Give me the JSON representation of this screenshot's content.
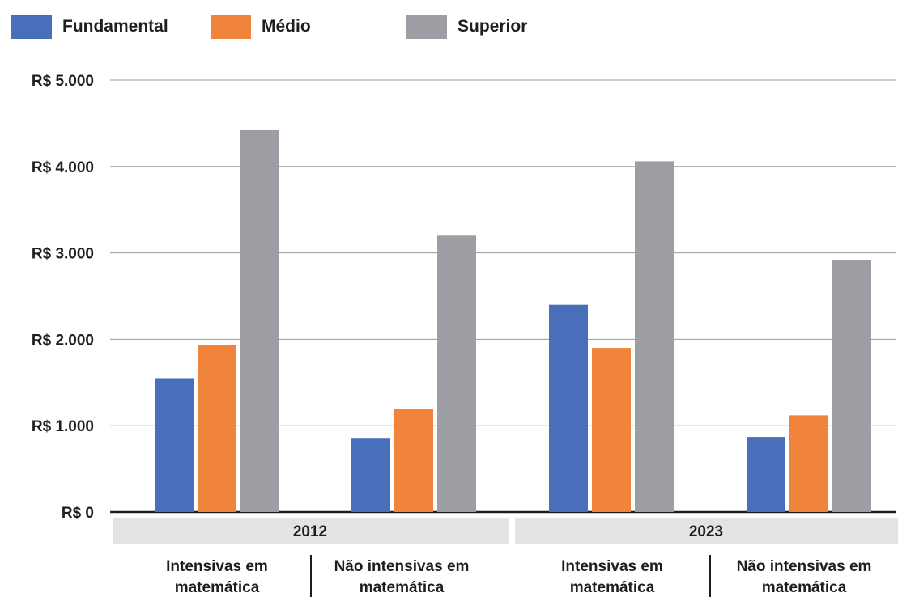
{
  "chart_data": {
    "type": "bar",
    "legend": [
      {
        "name": "Fundamental",
        "color": "#4a6fba"
      },
      {
        "name": "Médio",
        "color": "#f0843c"
      },
      {
        "name": "Superior",
        "color": "#9c9ea3"
      }
    ],
    "y_ticks": [
      "R$ 0",
      "R$ 1.000",
      "R$ 2.000",
      "R$ 3.000",
      "R$ 4.000",
      "R$ 5.000"
    ],
    "ylim": [
      0,
      5000
    ],
    "grid": true,
    "groups": [
      {
        "year": "2012",
        "categories": [
          {
            "label_lines": [
              "Intensivas em",
              "matemática"
            ],
            "values": [
              1550,
              1930,
              4420
            ]
          },
          {
            "label_lines": [
              "Não intensivas em",
              "matemática"
            ],
            "values": [
              850,
              1190,
              3200
            ]
          }
        ]
      },
      {
        "year": "2023",
        "categories": [
          {
            "label_lines": [
              "Intensivas em",
              "matemática"
            ],
            "values": [
              2400,
              1900,
              4060
            ]
          },
          {
            "label_lines": [
              "Não intensivas em",
              "matemática"
            ],
            "values": [
              870,
              1120,
              2920
            ]
          }
        ]
      }
    ]
  }
}
